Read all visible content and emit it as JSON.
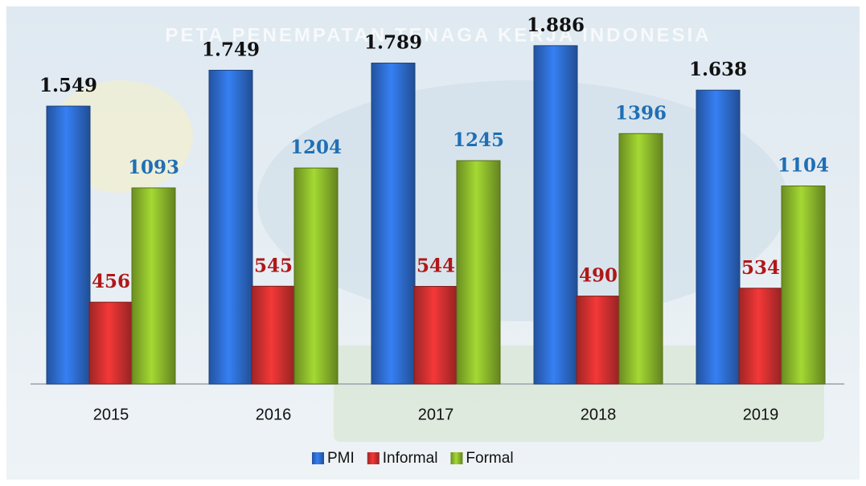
{
  "chart_data": {
    "type": "bar",
    "background_title": "PETA PENEMPATAN TENAGA KERJA INDONESIA",
    "categories": [
      "2015",
      "2016",
      "2017",
      "2018",
      "2019"
    ],
    "series": [
      {
        "name": "PMI",
        "color": "#2f6fd4",
        "values": [
          1549,
          1749,
          1789,
          1886,
          1638
        ],
        "value_labels": [
          "1.549",
          "1.749",
          "1.789",
          "1.886",
          "1.638"
        ],
        "label_color": "#111111"
      },
      {
        "name": "Informal",
        "color": "#d43131",
        "values": [
          456,
          545,
          544,
          490,
          534
        ],
        "label_color": "#b01818"
      },
      {
        "name": "Formal",
        "color": "#8fbd2c",
        "values": [
          1093,
          1204,
          1245,
          1396,
          1104
        ],
        "label_color": "#1f6fb5"
      }
    ]
  }
}
